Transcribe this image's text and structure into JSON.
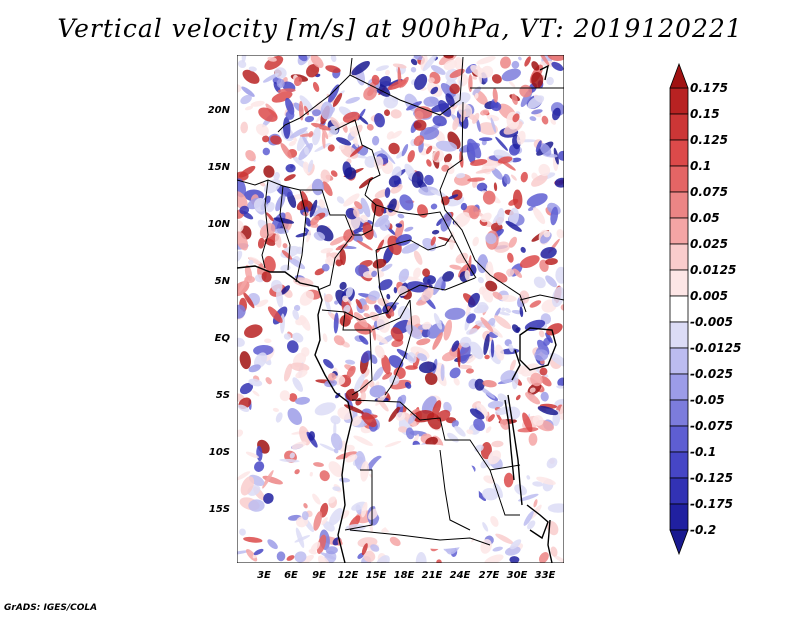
{
  "title": "Vertical velocity [m/s] at 900hPa, VT: 2019120221",
  "credit": "GrADS: IGES/COLA",
  "map": {
    "field": "vertical velocity",
    "level": "900hPa",
    "valid_time": "2019120221",
    "lat_labels": [
      "20N",
      "15N",
      "10N",
      "5N",
      "EQ",
      "5S",
      "10S",
      "15S"
    ],
    "lon_labels": [
      "3E",
      "6E",
      "9E",
      "12E",
      "15E",
      "18E",
      "21E",
      "24E",
      "27E",
      "30E",
      "33E"
    ]
  },
  "colorbar": {
    "labels": [
      "0.175",
      "0.15",
      "0.125",
      "0.1",
      "0.075",
      "0.05",
      "0.025",
      "0.0125",
      "0.005",
      "-0.005",
      "-0.0125",
      "-0.025",
      "-0.05",
      "-0.075",
      "-0.1",
      "-0.125",
      "-0.175",
      "-0.2"
    ],
    "colors": [
      "#a01212",
      "#b82222",
      "#cc3636",
      "#dc4a4a",
      "#e46565",
      "#ec8585",
      "#f4a5a5",
      "#f9cccc",
      "#fde6e6",
      "#ffffff",
      "#dcdcf6",
      "#bcbcf0",
      "#9c9ce8",
      "#7c7cdc",
      "#5e5ed2",
      "#4646c6",
      "#3232b4",
      "#2020a0",
      "#1a1a90"
    ]
  }
}
